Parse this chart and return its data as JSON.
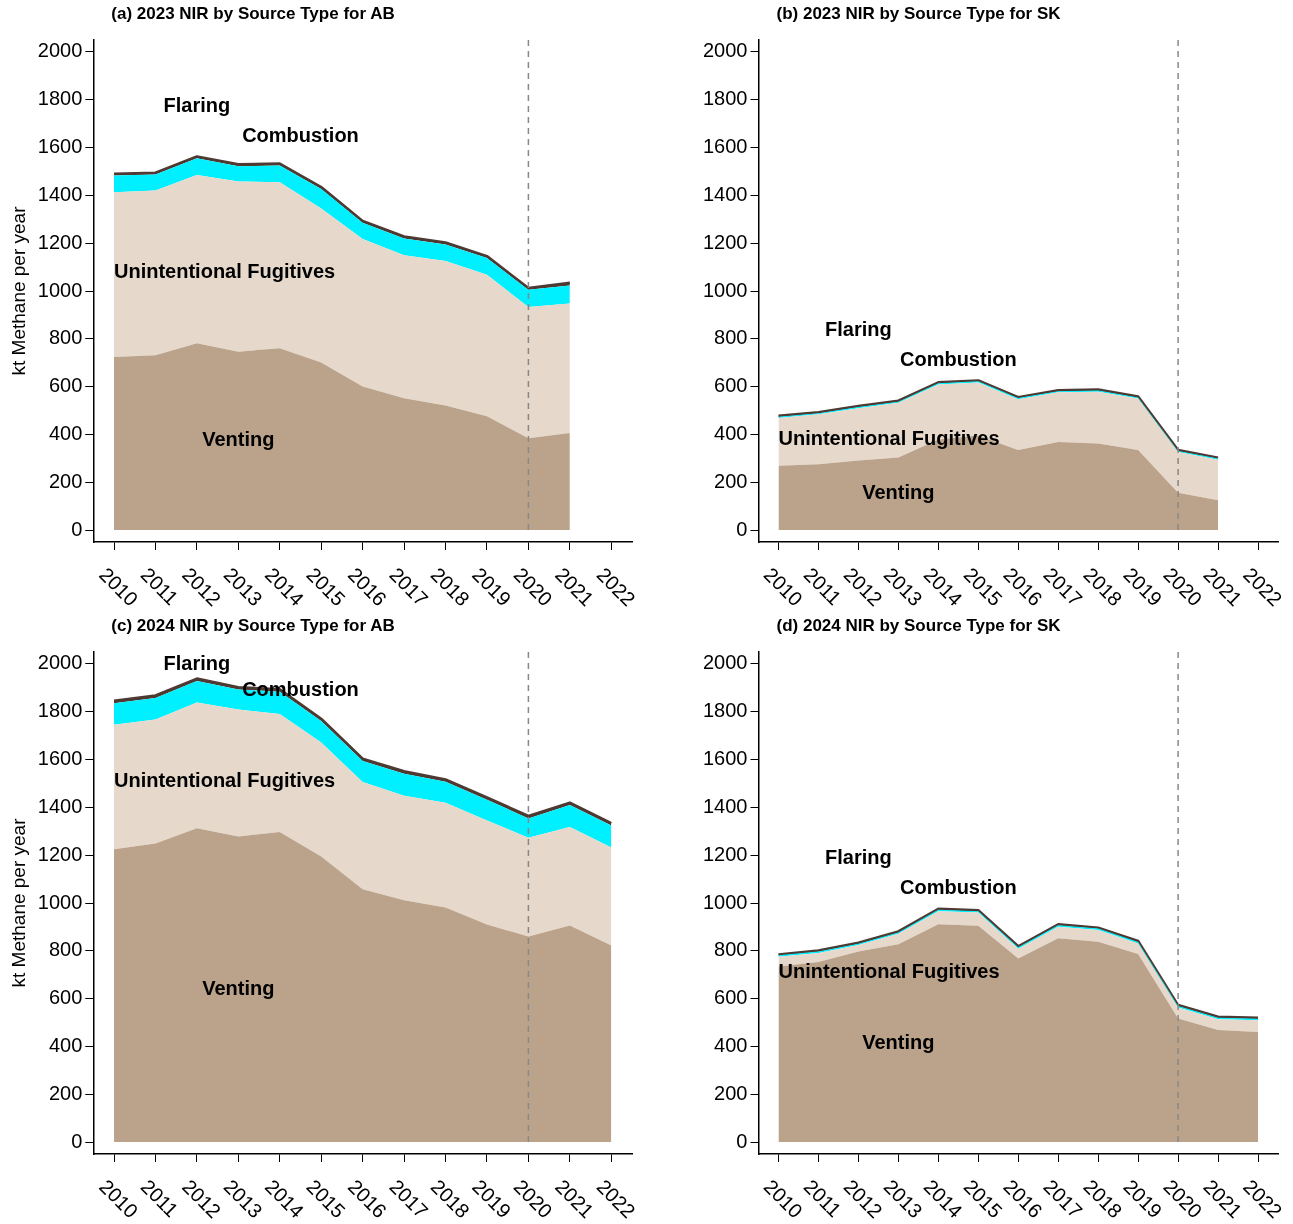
{
  "chart_data": [
    {
      "type": "area",
      "title": "(a) 2023 NIR by Source Type for AB",
      "ylabel": "kt Methane per year",
      "categories": [
        "2010",
        "2011",
        "2012",
        "2013",
        "2014",
        "2015",
        "2016",
        "2017",
        "2018",
        "2019",
        "2020",
        "2021",
        "2022"
      ],
      "stacked": true,
      "ylim": [
        -50,
        2050
      ],
      "yticks": [
        0,
        200,
        400,
        600,
        800,
        1000,
        1200,
        1400,
        1600,
        1800,
        2000
      ],
      "grid": false,
      "legend": false,
      "series": [
        {
          "name": "Venting",
          "color": "#bba38b",
          "values": [
            724,
            731,
            781,
            746,
            761,
            701,
            601,
            551,
            521,
            476,
            384,
            406,
            null
          ]
        },
        {
          "name": "Unintentional Fugitives",
          "color": "#e6d8ca",
          "values": [
            689,
            689,
            704,
            712,
            694,
            644,
            617,
            599,
            604,
            592,
            549,
            542,
            null
          ]
        },
        {
          "name": "Combustion",
          "color": "#00f0ff",
          "values": [
            70,
            67,
            70,
            64,
            70,
            82,
            67,
            70,
            70,
            70,
            72,
            75,
            null
          ]
        },
        {
          "name": "Flaring",
          "color": "#4f3a33",
          "values": [
            8,
            8,
            8,
            8,
            8,
            8,
            8,
            8,
            8,
            8,
            8,
            12,
            null
          ]
        }
      ],
      "ref_lines": [
        {
          "axis": "x",
          "value": "2020",
          "color": "#888888",
          "line_style": "dashed"
        }
      ]
    },
    {
      "type": "area",
      "title": "(b) 2023 NIR by Source Type for SK",
      "categories": [
        "2010",
        "2011",
        "2012",
        "2013",
        "2014",
        "2015",
        "2016",
        "2017",
        "2018",
        "2019",
        "2020",
        "2021",
        "2022"
      ],
      "stacked": true,
      "ylim": [
        -50,
        2050
      ],
      "yticks": [
        0,
        200,
        400,
        600,
        800,
        1000,
        1200,
        1400,
        1600,
        1800,
        2000
      ],
      "grid": false,
      "legend": false,
      "series": [
        {
          "name": "Venting",
          "color": "#bba38b",
          "values": [
            269,
            275,
            291,
            303,
            379,
            395,
            335,
            368,
            362,
            335,
            156,
            125,
            null
          ]
        },
        {
          "name": "Unintentional Fugitives",
          "color": "#e6d8ca",
          "values": [
            200,
            209,
            219,
            229,
            230,
            222,
            212,
            208,
            217,
            215,
            170,
            169,
            null
          ]
        },
        {
          "name": "Combustion",
          "color": "#00f0ff",
          "values": [
            5,
            5,
            5,
            5,
            5,
            5,
            5,
            5,
            5,
            5,
            5,
            5,
            null
          ]
        },
        {
          "name": "Flaring",
          "color": "#4f3a33",
          "values": [
            4,
            4,
            4,
            4,
            4,
            4,
            4,
            4,
            4,
            4,
            4,
            4,
            null
          ]
        }
      ],
      "ref_lines": [
        {
          "axis": "x",
          "value": "2020",
          "color": "#888888",
          "line_style": "dashed"
        }
      ]
    },
    {
      "type": "area",
      "title": "(c) 2024 NIR by Source Type for AB",
      "ylabel": "kt Methane per year",
      "categories": [
        "2010",
        "2011",
        "2012",
        "2013",
        "2014",
        "2015",
        "2016",
        "2017",
        "2018",
        "2019",
        "2020",
        "2021",
        "2022"
      ],
      "stacked": true,
      "ylim": [
        -50,
        2050
      ],
      "yticks": [
        0,
        200,
        400,
        600,
        800,
        1000,
        1200,
        1400,
        1600,
        1800,
        2000
      ],
      "grid": false,
      "legend": false,
      "series": [
        {
          "name": "Venting",
          "color": "#bba38b",
          "values": [
            1225,
            1249,
            1313,
            1278,
            1297,
            1195,
            1057,
            1011,
            981,
            910,
            860,
            906,
            822
          ]
        },
        {
          "name": "Unintentional Fugitives",
          "color": "#e6d8ca",
          "values": [
            521,
            519,
            526,
            531,
            494,
            476,
            449,
            438,
            438,
            435,
            413,
            412,
            410
          ]
        },
        {
          "name": "Combustion",
          "color": "#00f0ff",
          "values": [
            90,
            90,
            90,
            84,
            93,
            90,
            88,
            92,
            88,
            87,
            81,
            92,
            92
          ]
        },
        {
          "name": "Flaring",
          "color": "#4f3a33",
          "values": [
            10,
            10,
            10,
            10,
            10,
            10,
            10,
            10,
            10,
            10,
            10,
            10,
            10
          ]
        }
      ],
      "ref_lines": [
        {
          "axis": "x",
          "value": "2020",
          "color": "#888888",
          "line_style": "dashed"
        }
      ]
    },
    {
      "type": "area",
      "title": "(d) 2024 NIR by Source Type for SK",
      "categories": [
        "2010",
        "2011",
        "2012",
        "2013",
        "2014",
        "2015",
        "2016",
        "2017",
        "2018",
        "2019",
        "2020",
        "2021",
        "2022"
      ],
      "stacked": true,
      "ylim": [
        -50,
        2050
      ],
      "yticks": [
        0,
        200,
        400,
        600,
        800,
        1000,
        1200,
        1400,
        1600,
        1800,
        2000
      ],
      "grid": false,
      "legend": false,
      "series": [
        {
          "name": "Venting",
          "color": "#bba38b",
          "values": [
            734,
            753,
            797,
            827,
            911,
            905,
            768,
            853,
            838,
            787,
            517,
            469,
            460
          ]
        },
        {
          "name": "Unintentional Fugitives",
          "color": "#e6d8ca",
          "values": [
            41,
            38,
            27,
            44,
            55,
            55,
            41,
            48,
            49,
            44,
            46,
            45,
            50
          ]
        },
        {
          "name": "Combustion",
          "color": "#00f0ff",
          "values": [
            6,
            6,
            6,
            6,
            6,
            6,
            6,
            6,
            6,
            6,
            6,
            6,
            6
          ]
        },
        {
          "name": "Flaring",
          "color": "#4f3a33",
          "values": [
            4,
            4,
            4,
            4,
            4,
            4,
            4,
            4,
            4,
            4,
            4,
            4,
            4
          ]
        }
      ],
      "ref_lines": [
        {
          "axis": "x",
          "value": "2020",
          "color": "#888888",
          "line_style": "dashed"
        }
      ]
    }
  ]
}
